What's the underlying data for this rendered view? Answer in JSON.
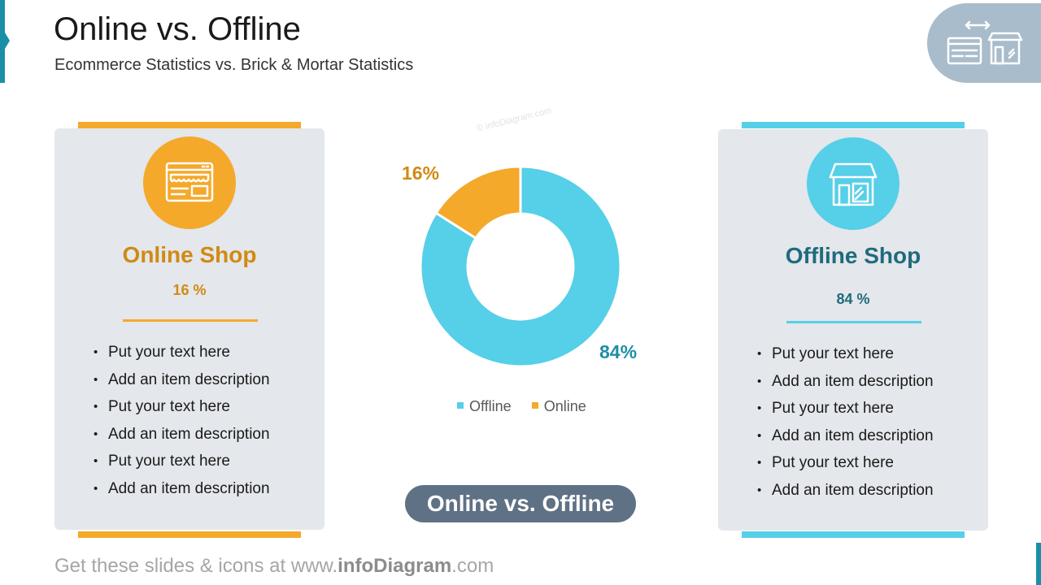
{
  "header": {
    "title": "Online vs. Offline",
    "subtitle": "Ecommerce Statistics vs. Brick & Mortar Statistics"
  },
  "left_card": {
    "title": "Online Shop",
    "percent": "16 %",
    "icon": "online-shop-window-icon",
    "bullets": [
      "Put your text here",
      "Add an item description",
      "Put your text here",
      "Add an item description",
      "Put your text here",
      "Add an item description"
    ]
  },
  "right_card": {
    "title": "Offline Shop",
    "percent": "84 %",
    "icon": "storefront-icon",
    "bullets": [
      "Put your text here",
      "Add an item description",
      "Put your text here",
      "Add an item description",
      "Put your text here",
      "Add an item description"
    ]
  },
  "center": {
    "watermark": "© infoDiagram.com",
    "pill_label": "Online vs. Offline"
  },
  "chart_data": {
    "type": "pie",
    "donut": true,
    "categories": [
      "Offline",
      "Online"
    ],
    "values": [
      84,
      16
    ],
    "value_labels": [
      "84%",
      "16%"
    ],
    "colors": [
      "#56cfe8",
      "#f4a92b"
    ],
    "legend": "bottom"
  },
  "footer": {
    "prefix": "Get these slides & icons at www.",
    "brand": "infoDiagram",
    "suffix": ".com"
  },
  "colors": {
    "online": "#f4a92b",
    "offline": "#56cfe8",
    "online_text": "#d08a13",
    "offline_text": "#1f6b7d",
    "pill": "#5f7184",
    "card_bg": "#e4e7eb",
    "accent": "#1b8fa8"
  }
}
